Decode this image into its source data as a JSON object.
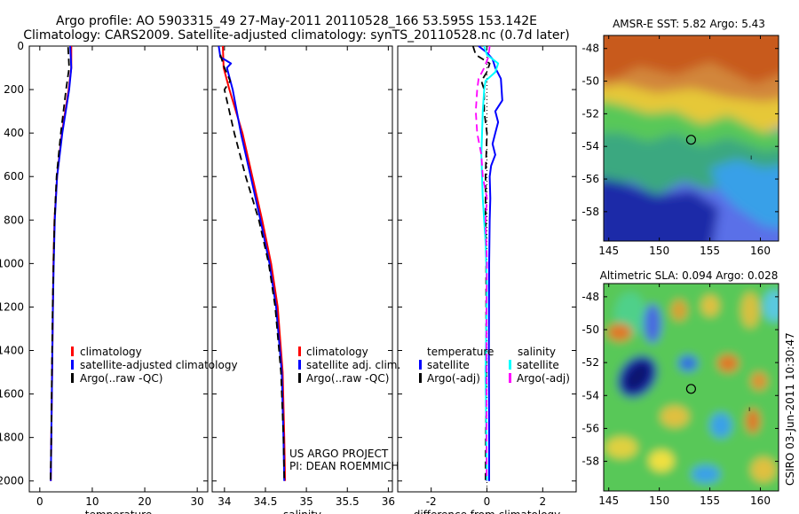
{
  "title": {
    "line1": "Argo profile: AO 5903315_49 27-May-2011 20110528_166 53.595S 153.142E",
    "line2": "Climatology: CARS2009. Satellite-adjusted climatology: synTS_20110528.nc (0.7d later)"
  },
  "y_ticks": [
    "0",
    "200",
    "400",
    "600",
    "800",
    "1000",
    "1200",
    "1400",
    "1600",
    "1800",
    "2000"
  ],
  "credits": {
    "line1": "US ARGO PROJECT",
    "line2": "PI: DEAN ROEMMICH"
  },
  "side_stamp": "CSIRO 03-Jun-2011 10:30:47",
  "chart_data": [
    {
      "type": "line",
      "id": "temperature",
      "xlabel": "temperature",
      "ylabel": "",
      "xlim": [
        -2,
        32
      ],
      "ylim": [
        2050,
        0
      ],
      "x_ticks": [
        "0",
        "10",
        "20",
        "30"
      ],
      "x_tick_values": [
        0,
        10,
        20,
        30
      ],
      "legend": [
        "climatology",
        "satellite-adjusted climatology",
        "Argo(..raw -QC)"
      ],
      "series": [
        {
          "name": "climatology",
          "color": "#ff0000",
          "dash": "solid",
          "depth": [
            0,
            100,
            200,
            400,
            600,
            800,
            1000,
            1200,
            1500,
            1800,
            2000
          ],
          "values": [
            6.0,
            6.0,
            5.5,
            4.2,
            3.3,
            2.8,
            2.6,
            2.5,
            2.35,
            2.2,
            2.1
          ]
        },
        {
          "name": "satellite-adjusted climatology",
          "color": "#0000ff",
          "dash": "solid",
          "depth": [
            0,
            100,
            200,
            400,
            600,
            800,
            1000,
            1200,
            1500,
            1800,
            2000
          ],
          "values": [
            5.8,
            6.0,
            5.6,
            4.3,
            3.3,
            2.85,
            2.65,
            2.5,
            2.35,
            2.2,
            2.1
          ]
        },
        {
          "name": "Argo(..raw -QC)",
          "color": "#000000",
          "dash": "dashed",
          "depth": [
            5,
            100,
            200,
            400,
            600,
            800,
            1000,
            1200,
            1500,
            1800,
            2000
          ],
          "values": [
            5.4,
            5.6,
            5.0,
            4.0,
            3.2,
            2.8,
            2.6,
            2.45,
            2.3,
            2.2,
            2.05
          ]
        }
      ]
    },
    {
      "type": "line",
      "id": "salinity",
      "xlabel": "salinity",
      "ylabel": "",
      "xlim": [
        33.85,
        36.05
      ],
      "ylim": [
        2050,
        0
      ],
      "x_ticks": [
        "34",
        "34.5",
        "35",
        "35.5",
        "36"
      ],
      "x_tick_values": [
        34,
        34.5,
        35,
        35.5,
        36
      ],
      "legend": [
        "climatology",
        "satellite adj. clim.",
        "Argo(..raw -QC)"
      ],
      "series": [
        {
          "name": "climatology",
          "color": "#ff0000",
          "dash": "solid",
          "depth": [
            0,
            100,
            200,
            400,
            600,
            800,
            1000,
            1200,
            1500,
            1800,
            2000
          ],
          "values": [
            33.98,
            33.99,
            34.06,
            34.22,
            34.34,
            34.46,
            34.57,
            34.65,
            34.71,
            34.73,
            34.74
          ]
        },
        {
          "name": "satellite adj. clim.",
          "color": "#0000ff",
          "dash": "solid",
          "depth": [
            0,
            50,
            80,
            100,
            200,
            400,
            600,
            800,
            1000,
            1200,
            1500,
            1800,
            2000
          ],
          "values": [
            33.93,
            33.95,
            34.08,
            34.03,
            34.1,
            34.2,
            34.32,
            34.44,
            34.55,
            34.63,
            34.7,
            34.72,
            34.73
          ]
        },
        {
          "name": "Argo(..raw -QC)",
          "color": "#000000",
          "dash": "dashed",
          "depth": [
            40,
            100,
            160,
            200,
            400,
            600,
            800,
            1000,
            1200,
            1500,
            1800,
            2000
          ],
          "values": [
            33.95,
            34.0,
            34.07,
            34.0,
            34.12,
            34.26,
            34.42,
            34.54,
            34.62,
            34.69,
            34.72,
            34.73
          ]
        }
      ]
    },
    {
      "type": "line",
      "id": "difference",
      "xlabel": "difference from climatology",
      "ylabel": "",
      "xlim": [
        -3.2,
        3.2
      ],
      "ylim": [
        2050,
        0
      ],
      "x_ticks": [
        "-2",
        "0",
        "2"
      ],
      "x_tick_values": [
        -2,
        0,
        2
      ],
      "legend_temperature_title": "temperature",
      "legend_salinity_title": "salinity",
      "legend": [
        "satellite",
        "Argo(-adj)",
        "satellite",
        "Argo(-adj)"
      ],
      "series": [
        {
          "name": "temperature satellite",
          "color": "#0000ff",
          "dash": "solid",
          "depth": [
            0,
            30,
            60,
            100,
            150,
            250,
            300,
            350,
            400,
            450,
            500,
            550,
            600,
            700,
            800,
            1000,
            1400,
            1800,
            2000
          ],
          "values": [
            -0.3,
            0.0,
            0.2,
            0.3,
            0.5,
            0.55,
            0.3,
            0.4,
            0.3,
            0.2,
            0.3,
            0.15,
            0.1,
            0.12,
            0.1,
            0.08,
            0.07,
            0.08,
            0.08
          ]
        },
        {
          "name": "temperature Argo(-adj)",
          "color": "#000000",
          "dash": "dashed",
          "depth": [
            0,
            40,
            80,
            120,
            160,
            200,
            300,
            400,
            600,
            800,
            1000,
            1500,
            2000
          ],
          "values": [
            -0.5,
            -0.4,
            0.1,
            0.0,
            -0.2,
            -0.1,
            -0.1,
            0.0,
            -0.05,
            -0.05,
            -0.03,
            -0.03,
            -0.05
          ]
        },
        {
          "name": "salinity satellite",
          "color": "#00ffff",
          "dash": "solid",
          "depth": [
            0,
            40,
            80,
            120,
            160,
            200,
            300,
            500,
            700,
            900,
            1100,
            1500,
            2000
          ],
          "values": [
            -0.1,
            0.0,
            0.4,
            0.3,
            -0.05,
            -0.1,
            -0.15,
            -0.2,
            -0.15,
            -0.05,
            0.0,
            -0.05,
            0.0
          ]
        },
        {
          "name": "salinity Argo(-adj)",
          "color": "#ff00ff",
          "dash": "dashed",
          "depth": [
            0,
            50,
            100,
            150,
            200,
            300,
            400,
            500,
            600,
            700,
            800,
            1000,
            1200,
            1500,
            2000
          ],
          "values": [
            0.1,
            0.05,
            -0.1,
            -0.3,
            -0.35,
            -0.4,
            -0.35,
            -0.2,
            -0.15,
            0.0,
            -0.05,
            0.0,
            -0.02,
            -0.02,
            -0.01
          ]
        }
      ]
    },
    {
      "type": "heatmap",
      "id": "sst_map",
      "title": "AMSR-E SST: 5.82 Argo: 5.43",
      "xlim": [
        144.5,
        161.8
      ],
      "ylim": [
        -59.8,
        -47.2
      ],
      "x_ticks": [
        "145",
        "150",
        "155",
        "160"
      ],
      "x_tick_values": [
        145,
        150,
        155,
        160
      ],
      "y_ticks": [
        "-48",
        "-50",
        "-52",
        "-54",
        "-56",
        "-58"
      ],
      "y_tick_values": [
        -48,
        -50,
        -52,
        -54,
        -56,
        -58
      ],
      "profile_location": {
        "lon": 153.142,
        "lat": -53.595
      }
    },
    {
      "type": "heatmap",
      "id": "sla_map",
      "title": "Altimetric SLA: 0.094 Argo: 0.028",
      "xlim": [
        144.5,
        161.8
      ],
      "ylim": [
        -59.8,
        -47.2
      ],
      "x_ticks": [
        "145",
        "150",
        "155",
        "160"
      ],
      "x_tick_values": [
        145,
        150,
        155,
        160
      ],
      "y_ticks": [
        "-48",
        "-50",
        "-52",
        "-54",
        "-56",
        "-58"
      ],
      "y_tick_values": [
        -48,
        -50,
        -52,
        -54,
        -56,
        -58
      ],
      "profile_location": {
        "lon": 153.142,
        "lat": -53.595
      }
    }
  ]
}
